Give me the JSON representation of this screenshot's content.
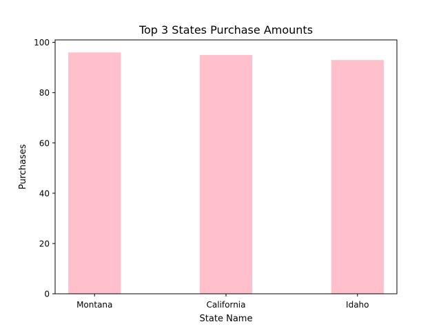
{
  "chart_data": {
    "type": "bar",
    "title": "Top 3 States Purchase Amounts",
    "xlabel": "State Name",
    "ylabel": "Purchases",
    "categories": [
      "Montana",
      "California",
      "Idaho"
    ],
    "values": [
      96,
      95,
      93
    ],
    "ylim": [
      0,
      100
    ],
    "yticks": [
      "0",
      "20",
      "40",
      "60",
      "80",
      "100"
    ],
    "grid": false,
    "legend": "none",
    "bar_color": "#FFC0CB"
  }
}
